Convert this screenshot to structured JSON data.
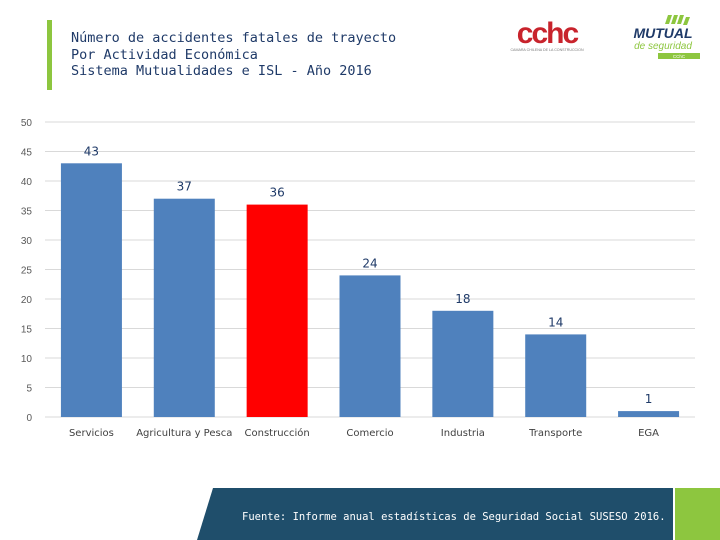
{
  "title": {
    "line1": "Número de accidentes fatales de trayecto",
    "line2": "Por Actividad Económica",
    "line3": "Sistema Mutualidades e ISL - Año 2016"
  },
  "logos": {
    "cchc_text": "cchc",
    "cchc_subtitle": "CAMARA CHILENA DE LA CONSTRUCCION",
    "mutual_line1": "MUTUAL",
    "mutual_line2": "de seguridad",
    "mutual_tag": "CChC"
  },
  "chart_data": {
    "type": "bar",
    "title": "",
    "xlabel": "",
    "ylabel": "",
    "ylim": [
      0,
      50
    ],
    "yticks": [
      0,
      5,
      10,
      15,
      20,
      25,
      30,
      35,
      40,
      45,
      50
    ],
    "grid": true,
    "categories": [
      "Servicios",
      "Agricultura y Pesca",
      "Construcción",
      "Comercio",
      "Industria",
      "Transporte",
      "EGA"
    ],
    "values": [
      43,
      37,
      36,
      24,
      18,
      14,
      1
    ],
    "colors": [
      "#4f81bd",
      "#4f81bd",
      "#ff0000",
      "#4f81bd",
      "#4f81bd",
      "#4f81bd",
      "#4f81bd"
    ]
  },
  "footer": {
    "source": "Fuente: Informe anual estadísticas de Seguridad Social SUSESO 2016."
  },
  "colors": {
    "title": "#1f3a68",
    "accent": "#8dc63f",
    "footer_dark": "#1f4e6b",
    "footer_green": "#8dc63f"
  }
}
